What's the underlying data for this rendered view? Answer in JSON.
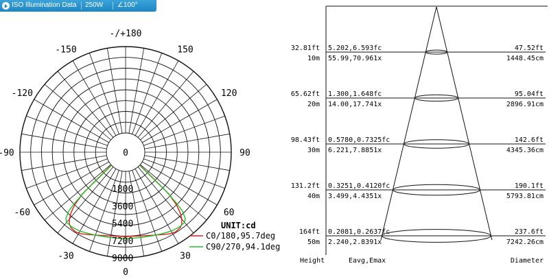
{
  "header": {
    "tab_title": "ISO Illumination  Data",
    "power": "250W",
    "angle": "∠100°"
  },
  "chart_data": [
    {
      "type": "polar",
      "unit_label": "UNIT:cd",
      "angle_labels": [
        "-/+180",
        "-150",
        "150",
        "-120",
        "120",
        "-90",
        "90",
        "-60",
        "60",
        "-30",
        "30",
        "0"
      ],
      "radial_ticks": [
        0,
        1800,
        3600,
        5400,
        7200,
        9000
      ],
      "rmax": 9000,
      "grid": true,
      "legend_position": "bottom-right",
      "series": [
        {
          "name": "C0/180,95.7deg",
          "color": "#dd1b1b",
          "points": [
            [
              -48,
              0
            ],
            [
              -46,
              4200
            ],
            [
              -44,
              5600
            ],
            [
              -42,
              6500
            ],
            [
              -40,
              7100
            ],
            [
              -38,
              7500
            ],
            [
              -36,
              7700
            ],
            [
              -32,
              7800
            ],
            [
              -28,
              7650
            ],
            [
              -24,
              7400
            ],
            [
              -18,
              7100
            ],
            [
              -12,
              6900
            ],
            [
              -6,
              6800
            ],
            [
              0,
              6800
            ],
            [
              6,
              6800
            ],
            [
              12,
              6900
            ],
            [
              18,
              7100
            ],
            [
              24,
              7400
            ],
            [
              28,
              7650
            ],
            [
              32,
              7800
            ],
            [
              36,
              7700
            ],
            [
              38,
              7500
            ],
            [
              40,
              7100
            ],
            [
              42,
              6500
            ],
            [
              44,
              5600
            ],
            [
              46,
              4200
            ],
            [
              48,
              0
            ]
          ]
        },
        {
          "name": "C90/270,94.1deg",
          "color": "#22c02a",
          "points": [
            [
              -47,
              0
            ],
            [
              -46,
              3900
            ],
            [
              -45,
              5400
            ],
            [
              -44,
              6500
            ],
            [
              -42,
              7300
            ],
            [
              -40,
              7550
            ],
            [
              -36,
              7600
            ],
            [
              -30,
              7500
            ],
            [
              -24,
              7300
            ],
            [
              -18,
              7150
            ],
            [
              -12,
              7050
            ],
            [
              -6,
              7000
            ],
            [
              0,
              7000
            ],
            [
              6,
              7000
            ],
            [
              12,
              7050
            ],
            [
              18,
              7150
            ],
            [
              24,
              7300
            ],
            [
              30,
              7500
            ],
            [
              36,
              7600
            ],
            [
              40,
              7550
            ],
            [
              42,
              7300
            ],
            [
              44,
              6500
            ],
            [
              45,
              5400
            ],
            [
              46,
              3900
            ],
            [
              47,
              0
            ]
          ]
        }
      ]
    },
    {
      "type": "table",
      "columns": [
        "Height",
        "Eavg,Emax",
        "Diameter"
      ],
      "rows": [
        {
          "height_ft": "32.81ft",
          "height_m": "10m",
          "fc": "5.202,6.593fc",
          "lx": "55.99,70.961x",
          "dia_ft": "47.52ft",
          "dia_cm": "1448.45cm"
        },
        {
          "height_ft": "65.62ft",
          "height_m": "20m",
          "fc": "1.300,1.648fc",
          "lx": "14.00,17.741x",
          "dia_ft": "95.04ft",
          "dia_cm": "2896.91cm"
        },
        {
          "height_ft": "98.43ft",
          "height_m": "30m",
          "fc": "0.5780,0.7325fc",
          "lx": "6.221,7.8851x",
          "dia_ft": "142.6ft",
          "dia_cm": "4345.36cm"
        },
        {
          "height_ft": "131.2ft",
          "height_m": "40m",
          "fc": "0.3251,0.4120fc",
          "lx": "3.499,4.4351x",
          "dia_ft": "190.1ft",
          "dia_cm": "5793.81cm"
        },
        {
          "height_ft": "164ft",
          "height_m": "50m",
          "fc": "0.2081,0.2637fc",
          "lx": "2.240,2.8391x",
          "dia_ft": "237.6ft",
          "dia_cm": "7242.26cm"
        }
      ]
    }
  ]
}
